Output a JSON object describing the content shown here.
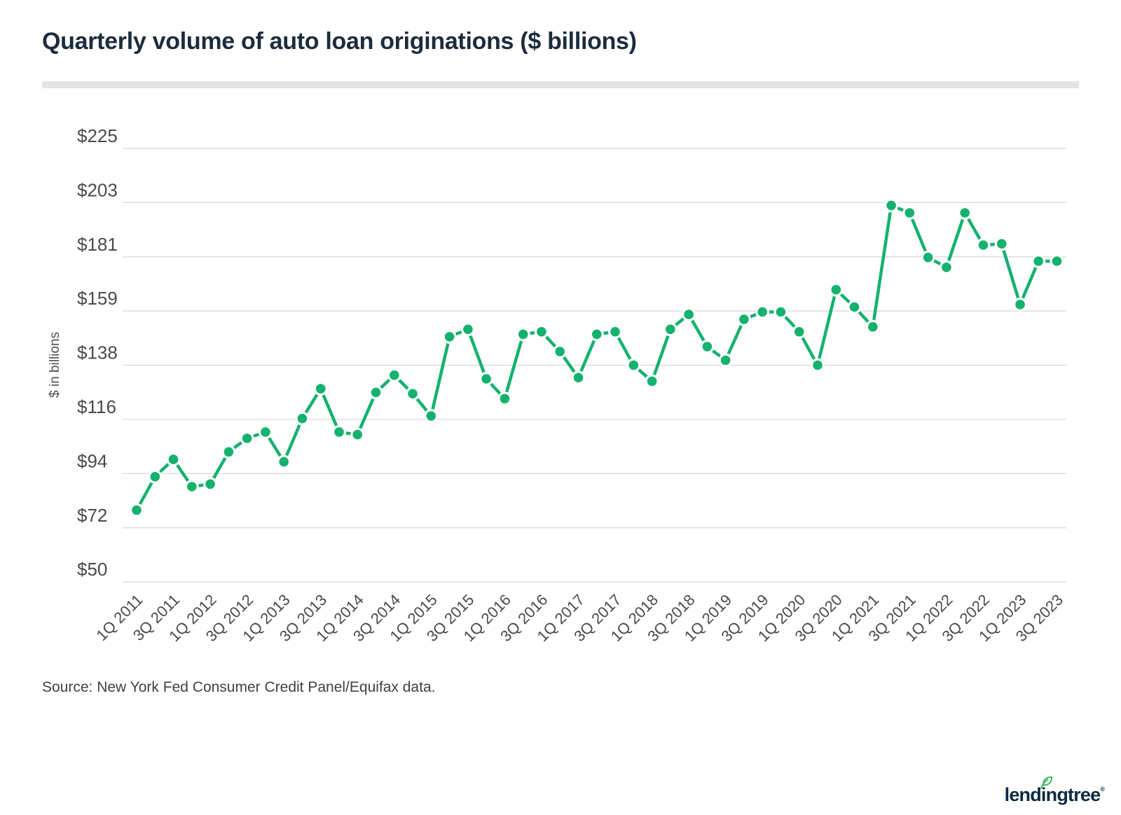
{
  "page": {
    "title": "Quarterly volume of auto loan originations ($ billions)",
    "source_note": "Source: New York Fed Consumer Credit Panel/Equifax data.",
    "brand": {
      "logo_text": "lendingtree",
      "registered_mark": "®"
    }
  },
  "colors": {
    "line_green": "#14b26e",
    "leaf_green": "#2fb457",
    "title_navy": "#1c2c3d",
    "logo_navy": "#0d2a40",
    "grid_gray": "#d8d8d8",
    "axis_text_gray": "#4a4a4a",
    "muted_text_gray": "#414141",
    "divider_gray": "#e4e4e4",
    "background": "#ffffff"
  },
  "chart_data": {
    "type": "line",
    "title": "Quarterly volume of auto loan originations ($ billions)",
    "xlabel": "",
    "ylabel": "$ in billions",
    "legend": "none",
    "grid": "horizontal-only",
    "y_tick_prefix": "$",
    "y_ticks": [
      50,
      72,
      94,
      116,
      138,
      159,
      181,
      203,
      225
    ],
    "ylim": [
      50,
      225
    ],
    "x_labels_every": 2,
    "x": [
      "1Q 2011",
      "2Q 2011",
      "3Q 2011",
      "4Q 2011",
      "1Q 2012",
      "2Q 2012",
      "3Q 2012",
      "4Q 2012",
      "1Q 2013",
      "2Q 2013",
      "3Q 2013",
      "4Q 2013",
      "1Q 2014",
      "2Q 2014",
      "3Q 2014",
      "4Q 2014",
      "1Q 2015",
      "2Q 2015",
      "3Q 2015",
      "4Q 2015",
      "1Q 2016",
      "2Q 2016",
      "3Q 2016",
      "4Q 2016",
      "1Q 2017",
      "2Q 2017",
      "3Q 2017",
      "4Q 2017",
      "1Q 2018",
      "2Q 2018",
      "3Q 2018",
      "4Q 2018",
      "1Q 2019",
      "2Q 2019",
      "3Q 2019",
      "4Q 2019",
      "1Q 2020",
      "2Q 2020",
      "3Q 2020",
      "4Q 2020",
      "1Q 2021",
      "2Q 2021",
      "3Q 2021",
      "4Q 2021",
      "1Q 2022",
      "2Q 2022",
      "3Q 2022",
      "4Q 2022",
      "1Q 2023",
      "2Q 2023",
      "3Q 2023"
    ],
    "values": [
      79,
      92.5,
      99.5,
      88.5,
      89.5,
      102.5,
      108,
      110.5,
      98.5,
      116,
      128,
      110.5,
      109.5,
      126.5,
      133.5,
      126,
      117,
      149,
      152,
      132,
      124,
      150,
      151,
      143,
      132.5,
      150,
      151,
      137.5,
      131,
      152,
      158,
      145,
      139.5,
      156,
      159,
      159,
      151,
      137.5,
      168,
      161,
      153,
      202,
      199,
      181,
      177,
      199,
      186,
      186.5,
      162,
      179.5,
      179.5
    ]
  }
}
